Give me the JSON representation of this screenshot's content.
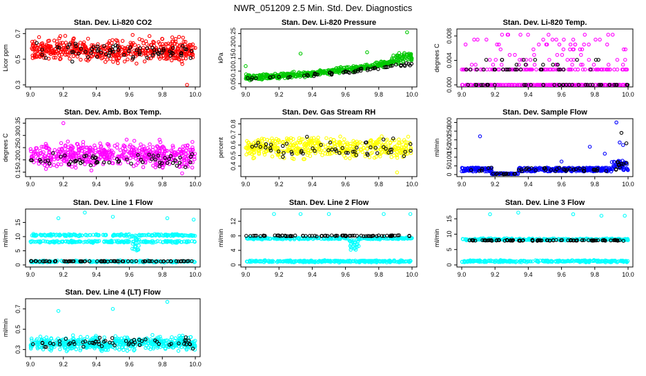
{
  "page_title": "NWR_051209  2.5 Min. Std. Dev. Diagnostics",
  "colors": {
    "primary_red": "#ff0000",
    "primary_green": "#00c800",
    "primary_magenta": "#ff00ff",
    "primary_yellow": "#ffff00",
    "primary_blue": "#0000ff",
    "primary_cyan": "#00ffff",
    "secondary_black": "#000000"
  },
  "chart_data": [
    {
      "id": "li820-co2",
      "type": "scatter",
      "title": "Stan. Dev. Li-820 CO2",
      "ylabel": "Licor ppm",
      "xlim": [
        9.0,
        10.0
      ],
      "ylim": [
        0.3,
        0.72
      ],
      "xticks": [
        "9.0",
        "9.2",
        "9.4",
        "9.6",
        "9.8",
        "10.0"
      ],
      "yticks": [
        0.3,
        0.5,
        0.7
      ],
      "ytick_labels": [
        "0.3",
        "0.5",
        "0.7"
      ],
      "series": [
        {
          "name": "primary",
          "color": "#ff0000",
          "n": 520,
          "pattern": "noise",
          "base": 0.57,
          "noise": 0.12,
          "outliers": [
            [
              9.35,
              0.66
            ],
            [
              9.62,
              0.69
            ],
            [
              9.95,
              0.3
            ]
          ]
        },
        {
          "name": "secondary",
          "color": "#000000",
          "n": 70,
          "pattern": "noise",
          "base": 0.57,
          "noise": 0.1
        }
      ]
    },
    {
      "id": "li820-pressure",
      "type": "scatter",
      "title": "Stan. Dev. Li-820 Pressure",
      "ylabel": "kPa",
      "xlim": [
        9.0,
        10.0
      ],
      "ylim": [
        0.045,
        0.26
      ],
      "xticks": [
        "9.0",
        "9.2",
        "9.4",
        "9.6",
        "9.8",
        "10.0"
      ],
      "yticks": [
        0.05,
        0.1,
        0.15,
        0.2,
        0.25
      ],
      "ytick_labels": [
        "0.05",
        "0.10",
        "0.15",
        "0.20",
        "0.25"
      ],
      "series": [
        {
          "name": "primary",
          "color": "#00c800",
          "n": 520,
          "pattern": "trend",
          "start": 0.075,
          "end": 0.145,
          "noise": 0.03,
          "surge_from": 9.88,
          "surge_add": 0.03,
          "outliers": [
            [
              9.33,
              0.17
            ],
            [
              9.73,
              0.175
            ],
            [
              9.97,
              0.255
            ],
            [
              9.0,
              0.12
            ]
          ]
        },
        {
          "name": "secondary",
          "color": "#000000",
          "n": 60,
          "pattern": "trend",
          "start": 0.07,
          "end": 0.13,
          "noise": 0.02
        }
      ]
    },
    {
      "id": "li820-temp",
      "type": "scatter",
      "title": "Stan. Dev. Li-820 Temp.",
      "ylabel": "degrees C",
      "xlim": [
        9.0,
        10.0
      ],
      "ylim": [
        0.0,
        0.0088
      ],
      "xticks": [
        "9.0",
        "9.2",
        "9.4",
        "9.6",
        "9.8",
        "10.0"
      ],
      "yticks": [
        0.0,
        0.004,
        0.008
      ],
      "ytick_labels": [
        "0.000",
        "0.004",
        "0.008"
      ],
      "series": [
        {
          "name": "primary",
          "color": "#ff00ff",
          "n": 420,
          "pattern": "levels",
          "levels": [
            0.0,
            0.0025,
            0.0033,
            0.0041,
            0.0049,
            0.0058,
            0.0066,
            0.0074,
            0.0082
          ]
        },
        {
          "name": "secondary",
          "color": "#000000",
          "n": 70,
          "pattern": "levels",
          "levels": [
            0.0,
            0.0025,
            0.0033,
            0.0041
          ]
        }
      ]
    },
    {
      "id": "amb-box-temp",
      "type": "scatter",
      "title": "Stan. Dev. Amb. Box Temp.",
      "ylabel": "degrees C",
      "xlim": [
        9.0,
        10.0
      ],
      "ylim": [
        0.14,
        0.36
      ],
      "xticks": [
        "9.0",
        "9.2",
        "9.4",
        "9.6",
        "9.8",
        "10.0"
      ],
      "yticks": [
        0.15,
        0.2,
        0.25,
        0.3,
        0.35
      ],
      "ytick_labels": [
        "0.15",
        "0.20",
        "0.25",
        "0.30",
        "0.35"
      ],
      "series": [
        {
          "name": "primary",
          "color": "#ff00ff",
          "n": 520,
          "pattern": "noise",
          "base": 0.22,
          "noise": 0.07,
          "outliers": [
            [
              9.2,
              0.35
            ],
            [
              9.92,
              0.145
            ]
          ]
        },
        {
          "name": "secondary",
          "color": "#000000",
          "n": 60,
          "pattern": "noise",
          "base": 0.2,
          "noise": 0.04
        }
      ]
    },
    {
      "id": "gas-stream-rh",
      "type": "scatter",
      "title": "Stan. Dev. Gas Stream RH",
      "ylabel": "percent",
      "xlim": [
        9.0,
        10.0
      ],
      "ylim": [
        0.32,
        0.83
      ],
      "xticks": [
        "9.0",
        "9.2",
        "9.4",
        "9.6",
        "9.8",
        "10.0"
      ],
      "yticks": [
        0.4,
        0.5,
        0.6,
        0.7,
        0.8
      ],
      "ytick_labels": [
        "0.4",
        "0.5",
        "0.6",
        "0.7",
        "0.8"
      ],
      "series": [
        {
          "name": "primary",
          "color": "#ffff00",
          "n": 460,
          "pattern": "noise",
          "base": 0.58,
          "noise": 0.14,
          "outliers": [
            [
              9.91,
              0.34
            ]
          ]
        },
        {
          "name": "secondary",
          "color": "#000000",
          "n": 55,
          "pattern": "noise",
          "base": 0.57,
          "noise": 0.12
        }
      ]
    },
    {
      "id": "sample-flow",
      "type": "scatter",
      "title": "Stan. Dev. Sample Flow",
      "ylabel": "ml/min",
      "xlim": [
        9.0,
        10.0
      ],
      "ylim": [
        0,
        310
      ],
      "xticks": [
        "9.0",
        "9.2",
        "9.4",
        "9.6",
        "9.8",
        "10.0"
      ],
      "yticks": [
        0,
        50,
        100,
        150,
        200,
        250,
        300
      ],
      "ytick_labels": [
        "0",
        "50",
        "100",
        "150",
        "200",
        "250",
        "300"
      ],
      "series": [
        {
          "name": "primary",
          "color": "#0000ff",
          "n": 480,
          "pattern": "sample",
          "outliers": [
            [
              9.11,
              220
            ],
            [
              9.77,
              160
            ],
            [
              9.86,
              120
            ],
            [
              9.93,
              300
            ],
            [
              9.95,
              185
            ],
            [
              9.97,
              170
            ],
            [
              9.6,
              75
            ]
          ]
        },
        {
          "name": "secondary",
          "color": "#000000",
          "n": 60,
          "pattern": "sample",
          "outliers": [
            [
              9.96,
              240
            ],
            [
              9.99,
              180
            ]
          ]
        }
      ]
    },
    {
      "id": "line1-flow",
      "type": "scatter",
      "title": "Stan. Dev. Line 1 Flow",
      "ylabel": "ml/min",
      "xlim": [
        9.0,
        10.0
      ],
      "ylim": [
        0,
        19
      ],
      "xticks": [
        "9.0",
        "9.2",
        "9.4",
        "9.6",
        "9.8",
        "10.0"
      ],
      "yticks": [
        0,
        5,
        10,
        15
      ],
      "ytick_labels": [
        "0",
        "5",
        "10",
        "15"
      ],
      "series": [
        {
          "name": "primary",
          "color": "#00ffff",
          "n": 600,
          "pattern": "bands",
          "bands": [
            1.2,
            8.2,
            10.5
          ],
          "noise": 0.5,
          "dip_at": 9.63,
          "dip_depth": 3.5,
          "outliers": [
            [
              9.17,
              16.5
            ],
            [
              9.33,
              18.5
            ],
            [
              9.5,
              17
            ],
            [
              9.83,
              16.5
            ],
            [
              9.99,
              16
            ]
          ]
        },
        {
          "name": "secondary",
          "color": "#000000",
          "n": 80,
          "pattern": "bands",
          "bands": [
            1.3
          ],
          "noise": 0.15
        }
      ]
    },
    {
      "id": "line2-flow",
      "type": "scatter",
      "title": "Stan. Dev. Line 2 Flow",
      "ylabel": "ml/min",
      "xlim": [
        9.0,
        10.0
      ],
      "ylim": [
        0,
        14.8
      ],
      "xticks": [
        "9.0",
        "9.2",
        "9.4",
        "9.6",
        "9.8",
        "10.0"
      ],
      "yticks": [
        0,
        4,
        8,
        12
      ],
      "ytick_labels": [
        "0",
        "4",
        "8",
        "12"
      ],
      "series": [
        {
          "name": "primary",
          "color": "#00ffff",
          "n": 560,
          "pattern": "bands",
          "bands": [
            1.0,
            7.3
          ],
          "noise": 0.4,
          "dip_at": 9.65,
          "dip_depth": 3,
          "outliers": [
            [
              9.17,
              14
            ],
            [
              9.33,
              14
            ],
            [
              9.5,
              14
            ],
            [
              9.83,
              14
            ],
            [
              9.99,
              14
            ]
          ]
        },
        {
          "name": "secondary",
          "color": "#000000",
          "n": 80,
          "pattern": "bands",
          "bands": [
            8.0
          ],
          "noise": 0.2
        }
      ]
    },
    {
      "id": "line3-flow",
      "type": "scatter",
      "title": "Stan. Dev. Line 3 Flow",
      "ylabel": "ml/min",
      "xlim": [
        9.0,
        10.0
      ],
      "ylim": [
        0,
        17.5
      ],
      "xticks": [
        "9.0",
        "9.2",
        "9.4",
        "9.6",
        "9.8",
        "10.0"
      ],
      "yticks": [
        0,
        5,
        10,
        15
      ],
      "ytick_labels": [
        "0",
        "5",
        "10",
        "15"
      ],
      "series": [
        {
          "name": "primary",
          "color": "#00ffff",
          "n": 560,
          "pattern": "bands",
          "bands": [
            1.2,
            8.3
          ],
          "noise": 0.45,
          "outliers": [
            [
              9.17,
              16.5
            ],
            [
              9.34,
              17
            ],
            [
              9.67,
              16.5
            ],
            [
              9.84,
              16
            ],
            [
              9.98,
              16
            ]
          ]
        },
        {
          "name": "secondary",
          "color": "#000000",
          "n": 90,
          "pattern": "bands",
          "bands": [
            8.0
          ],
          "noise": 0.25
        }
      ]
    },
    {
      "id": "line4-flow",
      "type": "scatter",
      "title": "Stan. Dev. Line 4 (LT) Flow",
      "ylabel": "ml/min",
      "xlim": [
        9.0,
        10.0
      ],
      "ylim": [
        0.25,
        0.78
      ],
      "xticks": [
        "9.0",
        "9.2",
        "9.4",
        "9.6",
        "9.8",
        "10.0"
      ],
      "yticks": [
        0.3,
        0.5,
        0.7
      ],
      "ytick_labels": [
        "0.3",
        "0.5",
        "0.7"
      ],
      "series": [
        {
          "name": "primary",
          "color": "#00ffff",
          "n": 520,
          "pattern": "noise",
          "base": 0.36,
          "noise": 0.09,
          "outliers": [
            [
              9.17,
              0.68
            ],
            [
              9.5,
              0.7
            ],
            [
              9.83,
              0.77
            ]
          ]
        },
        {
          "name": "secondary",
          "color": "#000000",
          "n": 60,
          "pattern": "noise",
          "base": 0.37,
          "noise": 0.07
        }
      ]
    }
  ]
}
